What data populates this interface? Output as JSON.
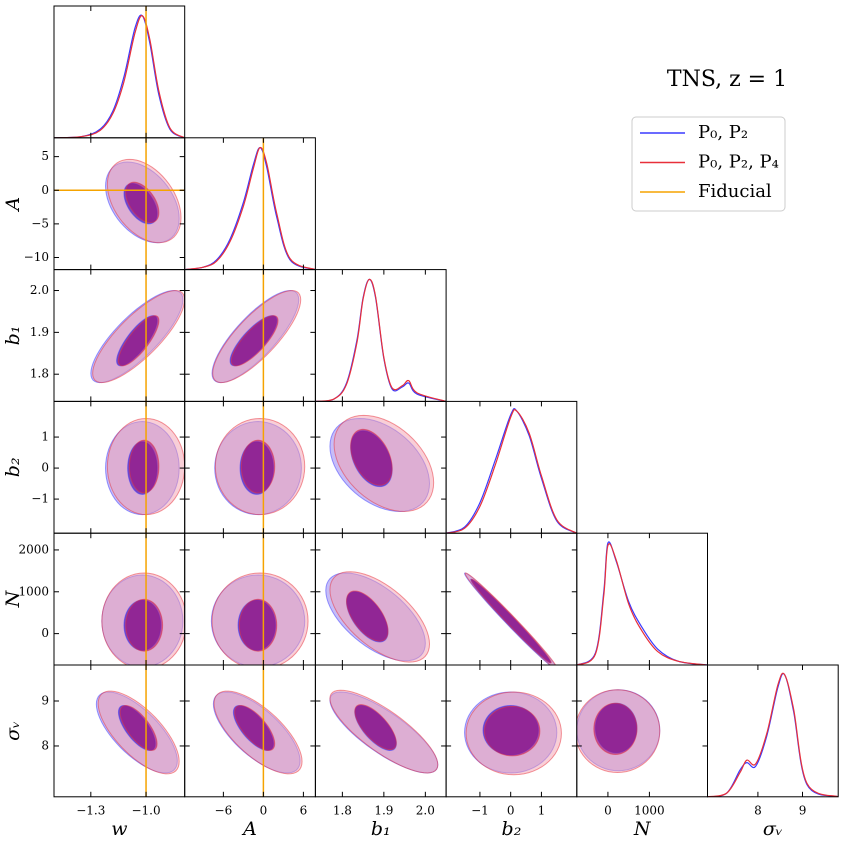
{
  "chart_data": {
    "type": "corner",
    "title": "TNS, z = 1",
    "series": [
      {
        "name": "P₀, P₂",
        "color": "#3a3aff"
      },
      {
        "name": "P₀, P₂, P₄",
        "color": "#e8303a"
      }
    ],
    "fiducial": {
      "name": "Fiducial",
      "color": "#f5a300"
    },
    "density_lim": [
      0,
      1.08
    ],
    "parameters": [
      {
        "label": "w",
        "lim": [
          -1.5,
          -0.79
        ],
        "xticks": [
          {
            "value": -1.3,
            "label": "−1.3"
          },
          {
            "value": -1,
            "label": "−1.0"
          }
        ],
        "fiducial": -1,
        "marginal": {
          "x": [
            -1.5,
            -1.35,
            -1.25,
            -1.18,
            -1.12,
            -1.06,
            -1.02,
            -0.98,
            -0.93,
            -0.87,
            -0.79
          ],
          "values": [
            [
              0,
              0.01,
              0.07,
              0.22,
              0.5,
              0.9,
              1.0,
              0.78,
              0.35,
              0.07,
              0
            ],
            [
              0,
              0.01,
              0.06,
              0.2,
              0.46,
              0.86,
              1.0,
              0.81,
              0.38,
              0.08,
              0
            ]
          ]
        },
        "contours": []
      },
      {
        "label": "A",
        "lim": [
          -11.8,
          7.8
        ],
        "xticks": [
          {
            "value": -6,
            "label": "−6"
          },
          0,
          6
        ],
        "yticks": [
          5,
          0,
          {
            "value": -5,
            "label": "−5"
          },
          {
            "value": -10,
            "label": "−10"
          }
        ],
        "fiducial": 0,
        "marginal": {
          "x": [
            -11.8,
            -9,
            -7,
            -5,
            -3,
            -1.5,
            -0.5,
            0.5,
            2,
            4,
            7.8
          ],
          "values": [
            [
              0,
              0.02,
              0.08,
              0.25,
              0.55,
              0.86,
              1.0,
              0.84,
              0.43,
              0.08,
              0
            ],
            [
              0,
              0.02,
              0.07,
              0.23,
              0.52,
              0.83,
              1.0,
              0.87,
              0.46,
              0.09,
              0
            ]
          ]
        },
        "contours": [
          [
            [
              [
                -1.03,
                -2,
                0.09,
                3,
                -0.5
              ],
              [
                -1.02,
                -1.8,
                0.2,
                6,
                -0.4
              ]
            ],
            [
              [
                -1.02,
                -1.8,
                0.09,
                3,
                -0.5
              ],
              [
                -1.01,
                -1.6,
                0.2,
                6.2,
                -0.4
              ]
            ]
          ]
        ]
      },
      {
        "label": "b₁",
        "lim": [
          1.735,
          2.05
        ],
        "xticks": [
          1.8,
          1.9,
          {
            "value": 2,
            "label": "2.0"
          }
        ],
        "yticks": [
          1.8,
          1.9,
          {
            "value": 2,
            "label": "2.0"
          }
        ],
        "marginal": {
          "x": [
            1.735,
            1.78,
            1.81,
            1.835,
            1.85,
            1.865,
            1.88,
            1.9,
            1.92,
            1.945,
            1.96,
            1.98,
            2.05
          ],
          "values": [
            [
              0,
              0.02,
              0.15,
              0.5,
              0.85,
              1.0,
              0.85,
              0.35,
              0.1,
              0.12,
              0.15,
              0.06,
              0
            ],
            [
              0,
              0.02,
              0.14,
              0.48,
              0.84,
              1.0,
              0.86,
              0.36,
              0.11,
              0.13,
              0.17,
              0.07,
              0
            ]
          ]
        },
        "contours": [
          [
            [
              [
                -1.05,
                1.88,
                0.11,
                0.06,
                0.8
              ],
              [
                -1.05,
                1.89,
                0.25,
                0.11,
                0.8
              ]
            ],
            [
              [
                -1.04,
                1.88,
                0.11,
                0.06,
                0.8
              ],
              [
                -1.04,
                1.89,
                0.25,
                0.11,
                0.8
              ]
            ]
          ],
          [
            [
              [
                -1.5,
                1.88,
                3.5,
                0.06,
                0.8
              ],
              [
                -1.2,
                1.89,
                6.5,
                0.11,
                0.8
              ]
            ],
            [
              [
                -1.3,
                1.88,
                3.5,
                0.06,
                0.8
              ],
              [
                -1,
                1.89,
                6.6,
                0.11,
                0.8
              ]
            ]
          ]
        ]
      },
      {
        "label": "b₂",
        "lim": [
          -2.1,
          2.15
        ],
        "xticks": [
          {
            "value": -1,
            "label": "−1"
          },
          0,
          1
        ],
        "yticks": [
          {
            "value": -1,
            "label": "−1"
          },
          0,
          1
        ],
        "marginal": {
          "x": [
            -2.1,
            -1.5,
            -1,
            -0.5,
            0,
            0.2,
            0.6,
            1,
            1.5,
            2.15
          ],
          "values": [
            [
              0,
              0.05,
              0.25,
              0.6,
              0.97,
              1.0,
              0.8,
              0.45,
              0.1,
              0
            ],
            [
              0,
              0.04,
              0.22,
              0.56,
              0.95,
              1.0,
              0.82,
              0.47,
              0.11,
              0
            ]
          ]
        },
        "contours": [
          [
            [
              [
                -1.02,
                0,
                0.08,
                0.85,
                0
              ],
              [
                -1.02,
                0,
                0.2,
                1.5,
                0
              ]
            ],
            [
              [
                -1.01,
                0.05,
                0.08,
                0.85,
                0
              ],
              [
                -1.0,
                0.05,
                0.21,
                1.55,
                0
              ]
            ]
          ],
          [
            [
              [
                -1,
                0,
                2.5,
                0.85,
                0
              ],
              [
                -0.8,
                0,
                6.5,
                1.5,
                0
              ]
            ],
            [
              [
                -0.8,
                0.05,
                2.5,
                0.85,
                0
              ],
              [
                -0.5,
                0.05,
                6.7,
                1.55,
                0
              ]
            ]
          ],
          [
            [
              [
                1.87,
                0.3,
                0.05,
                0.9,
                -0.4
              ],
              [
                1.89,
                0.1,
                0.12,
                1.5,
                -0.4
              ]
            ],
            [
              [
                1.87,
                0.35,
                0.05,
                0.9,
                -0.4
              ],
              [
                1.9,
                0.15,
                0.12,
                1.55,
                -0.4
              ]
            ]
          ]
        ]
      },
      {
        "label": "N",
        "lim": [
          -750,
          2400
        ],
        "xticks": [
          0,
          1000
        ],
        "yticks": [
          0,
          1000,
          2000
        ],
        "marginal": {
          "x": [
            -750,
            -300,
            -100,
            0,
            200,
            500,
            800,
            1200,
            1700,
            2400
          ],
          "values": [
            [
              0,
              0.1,
              0.6,
              1.0,
              0.85,
              0.52,
              0.32,
              0.13,
              0.03,
              0
            ],
            [
              0,
              0.09,
              0.57,
              0.98,
              0.86,
              0.5,
              0.29,
              0.11,
              0.03,
              0
            ]
          ]
        },
        "contours": [
          [
            [
              [
                -1.02,
                200,
                0.1,
                600,
                0
              ],
              [
                -1.02,
                300,
                0.22,
                1100,
                0
              ]
            ],
            [
              [
                -1.01,
                200,
                0.1,
                620,
                0
              ],
              [
                -1.01,
                300,
                0.23,
                1150,
                0
              ]
            ]
          ],
          [
            [
              [
                -1,
                200,
                2.8,
                600,
                0
              ],
              [
                -0.8,
                300,
                7,
                1100,
                0
              ]
            ],
            [
              [
                -0.8,
                200,
                2.8,
                620,
                0
              ],
              [
                -0.5,
                300,
                7.2,
                1150,
                0
              ]
            ]
          ],
          [
            [
              [
                1.86,
                400,
                0.05,
                600,
                -0.6
              ],
              [
                1.88,
                400,
                0.12,
                1050,
                -0.6
              ]
            ],
            [
              [
                1.86,
                420,
                0.05,
                600,
                -0.6
              ],
              [
                1.89,
                400,
                0.12,
                1080,
                -0.6
              ]
            ]
          ],
          [
            [
              [
                0,
                300,
                1.3,
                1000,
                -0.99
              ],
              [
                0,
                300,
                1.5,
                1150,
                -0.99
              ]
            ],
            [
              [
                0.02,
                300,
                1.3,
                1000,
                -0.99
              ],
              [
                0.02,
                300,
                1.5,
                1150,
                -0.99
              ]
            ]
          ]
        ]
      },
      {
        "label": "σᵥ",
        "lim": [
          6.87,
          9.8
        ],
        "xticks": [
          8,
          9
        ],
        "yticks": [
          8,
          9
        ],
        "marginal": {
          "x": [
            6.87,
            7.3,
            7.6,
            7.75,
            7.95,
            8.2,
            8.45,
            8.6,
            8.8,
            9.1,
            9.8
          ],
          "values": [
            [
              0,
              0.03,
              0.22,
              0.28,
              0.25,
              0.5,
              0.9,
              1.0,
              0.7,
              0.1,
              0
            ],
            [
              0,
              0.03,
              0.2,
              0.3,
              0.27,
              0.52,
              0.92,
              1.0,
              0.72,
              0.11,
              0
            ]
          ]
        },
        "contours": [
          [
            [
              [
                -1.05,
                8.4,
                0.1,
                0.5,
                -0.7
              ],
              [
                -1.05,
                8.3,
                0.22,
                0.9,
                -0.7
              ]
            ],
            [
              [
                -1.04,
                8.4,
                0.1,
                0.5,
                -0.7
              ],
              [
                -1.04,
                8.3,
                0.22,
                0.92,
                -0.7
              ]
            ]
          ],
          [
            [
              [
                -1.5,
                8.4,
                3,
                0.5,
                -0.7
              ],
              [
                -1,
                8.3,
                6.5,
                0.9,
                -0.7
              ]
            ],
            [
              [
                -1.3,
                8.4,
                3,
                0.5,
                -0.7
              ],
              [
                -0.8,
                8.3,
                6.6,
                0.92,
                -0.7
              ]
            ]
          ],
          [
            [
              [
                1.88,
                8.4,
                0.05,
                0.5,
                -0.7
              ],
              [
                1.9,
                8.3,
                0.13,
                0.9,
                -0.8
              ]
            ],
            [
              [
                1.88,
                8.42,
                0.05,
                0.5,
                -0.7
              ],
              [
                1.9,
                8.32,
                0.13,
                0.92,
                -0.8
              ]
            ]
          ],
          [
            [
              [
                0,
                8.35,
                0.9,
                0.55,
                0
              ],
              [
                0,
                8.3,
                1.5,
                0.9,
                0
              ]
            ],
            [
              [
                0.05,
                8.33,
                0.9,
                0.55,
                0
              ],
              [
                0.1,
                8.28,
                1.55,
                0.92,
                0
              ]
            ]
          ],
          [
            [
              [
                200,
                8.4,
                500,
                0.55,
                0
              ],
              [
                250,
                8.35,
                1000,
                0.9,
                0
              ]
            ],
            [
              [
                180,
                8.38,
                520,
                0.57,
                0
              ],
              [
                230,
                8.33,
                1020,
                0.92,
                0
              ]
            ]
          ]
        ]
      }
    ]
  }
}
